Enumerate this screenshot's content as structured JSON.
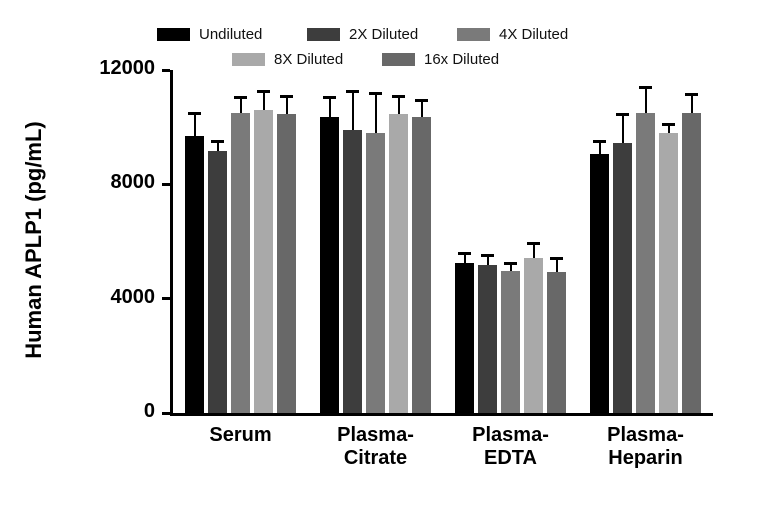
{
  "chart_data": {
    "type": "bar",
    "title": "",
    "ylabel": "Human APLP1 (pg/mL)",
    "xlabel": "",
    "ylim": [
      0,
      12000
    ],
    "yticks": [
      0,
      4000,
      8000,
      12000
    ],
    "grid": false,
    "legend_position": "top",
    "error_bars": "upper",
    "categories": [
      "Serum",
      "Plasma-Citrate",
      "Plasma-EDTA",
      "Plasma-Heparin"
    ],
    "category_label_lines": [
      [
        "Serum"
      ],
      [
        "Plasma-",
        "Citrate"
      ],
      [
        "Plasma-",
        "EDTA"
      ],
      [
        "Plasma-",
        "Heparin"
      ]
    ],
    "series": [
      {
        "name": "Undiluted",
        "color": "#000000",
        "values": [
          9700,
          10350,
          5250,
          9050
        ],
        "errors": [
          800,
          700,
          350,
          450
        ]
      },
      {
        "name": "2X Diluted",
        "color": "#3d3d3d",
        "values": [
          9150,
          9900,
          5180,
          9450
        ],
        "errors": [
          350,
          1350,
          350,
          1000
        ]
      },
      {
        "name": "4X Diluted",
        "color": "#7a7a7a",
        "values": [
          10500,
          9800,
          4970,
          10500
        ],
        "errors": [
          550,
          1400,
          280,
          900
        ]
      },
      {
        "name": "8X Diluted",
        "color": "#a9a9a9",
        "values": [
          10600,
          10450,
          5420,
          9800
        ],
        "errors": [
          650,
          650,
          520,
          300
        ]
      },
      {
        "name": "16x Diluted",
        "color": "#686868",
        "values": [
          10450,
          10350,
          4930,
          10500
        ],
        "errors": [
          650,
          600,
          480,
          650
        ]
      }
    ]
  }
}
